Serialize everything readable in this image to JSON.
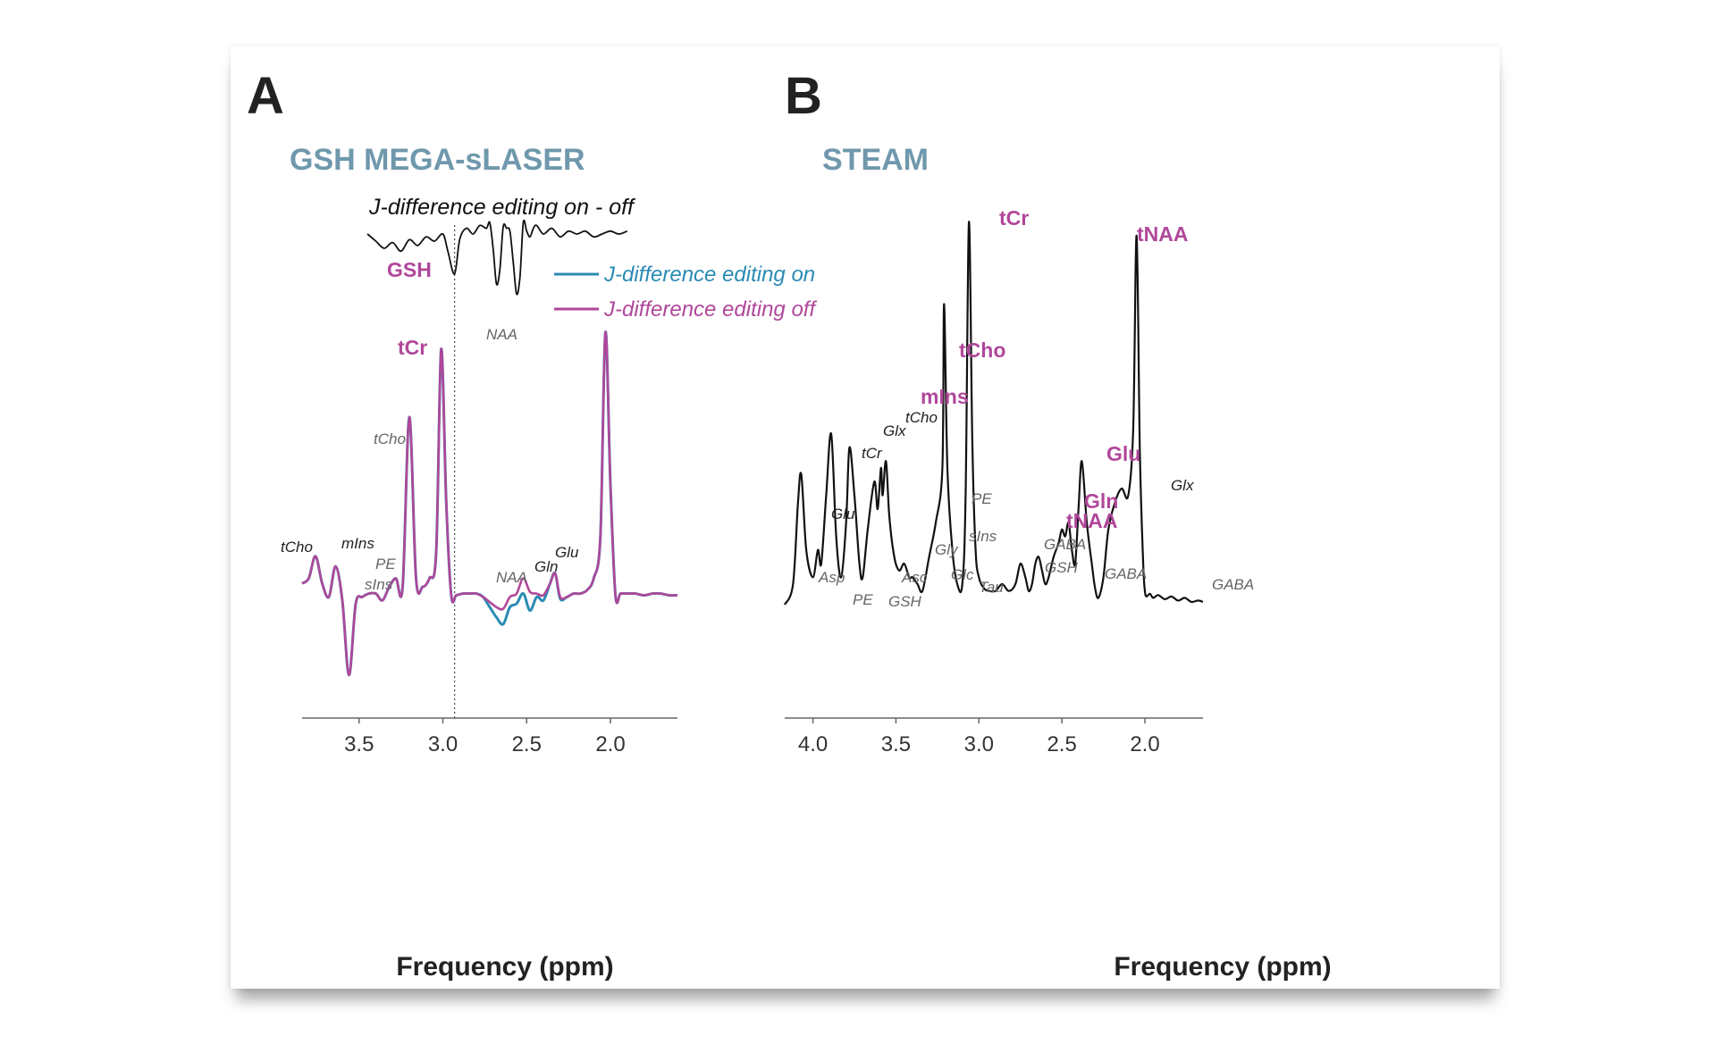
{
  "panels": {
    "a": {
      "letter": "A",
      "title": "GSH MEGA-sLASER",
      "difference_title": "J-difference editing on - off",
      "xlabel": "Frequency (ppm)",
      "legend": {
        "on": "J-difference editing on",
        "off": "J-difference editing off"
      },
      "colors": {
        "on": "#2a8bb3",
        "off": "#b0479a",
        "difference": "#111111"
      }
    },
    "b": {
      "letter": "B",
      "title": "STEAM",
      "xlabel": "Frequency (ppm)",
      "colors": {
        "spectrum": "#111111"
      }
    }
  },
  "chart_data": [
    {
      "type": "line",
      "panel": "A",
      "title": "GSH MEGA-sLASER",
      "xlabel": "Frequency (ppm)",
      "x_reversed": true,
      "xlim": [
        3.84,
        1.6
      ],
      "xticks": [
        3.5,
        3.0,
        2.5,
        2.0
      ],
      "xtick_labels": [
        "3.5",
        "3.0",
        "2.5",
        "2.0"
      ],
      "reference_line_ppm": 2.93,
      "series": [
        {
          "name": "J-difference editing on",
          "x": [
            3.84,
            3.8,
            3.76,
            3.72,
            3.68,
            3.64,
            3.6,
            3.56,
            3.52,
            3.48,
            3.44,
            3.4,
            3.36,
            3.32,
            3.28,
            3.24,
            3.2,
            3.16,
            3.12,
            3.08,
            3.04,
            3.01,
            2.98,
            2.95,
            2.92,
            2.88,
            2.84,
            2.8,
            2.76,
            2.72,
            2.68,
            2.64,
            2.6,
            2.56,
            2.52,
            2.48,
            2.44,
            2.4,
            2.36,
            2.33,
            2.3,
            2.26,
            2.22,
            2.18,
            2.14,
            2.1,
            2.06,
            2.03,
            2.0,
            1.97,
            1.94,
            1.9,
            1.85,
            1.8,
            1.75,
            1.7,
            1.65,
            1.6
          ],
          "y": [
            0.02,
            0.05,
            0.18,
            0.02,
            -0.06,
            0.12,
            -0.08,
            -0.52,
            -0.1,
            -0.06,
            -0.04,
            -0.04,
            -0.08,
            0.0,
            0.05,
            0.0,
            1.0,
            0.05,
            0.0,
            0.05,
            0.2,
            1.4,
            0.5,
            -0.05,
            -0.05,
            -0.04,
            -0.04,
            -0.04,
            -0.06,
            -0.12,
            -0.18,
            -0.22,
            -0.12,
            -0.1,
            -0.04,
            -0.14,
            -0.06,
            -0.08,
            0.02,
            0.08,
            -0.07,
            -0.06,
            -0.04,
            -0.04,
            -0.02,
            0.05,
            0.3,
            1.5,
            0.6,
            -0.05,
            -0.04,
            -0.04,
            -0.04,
            -0.05,
            -0.04,
            -0.04,
            -0.05,
            -0.05
          ]
        },
        {
          "name": "J-difference editing off",
          "x": [
            3.84,
            3.8,
            3.76,
            3.72,
            3.68,
            3.64,
            3.6,
            3.56,
            3.52,
            3.48,
            3.44,
            3.4,
            3.36,
            3.32,
            3.28,
            3.24,
            3.2,
            3.16,
            3.12,
            3.08,
            3.04,
            3.01,
            2.98,
            2.95,
            2.92,
            2.88,
            2.84,
            2.8,
            2.76,
            2.72,
            2.68,
            2.64,
            2.6,
            2.56,
            2.52,
            2.48,
            2.44,
            2.4,
            2.36,
            2.33,
            2.3,
            2.26,
            2.22,
            2.18,
            2.14,
            2.1,
            2.06,
            2.03,
            2.0,
            1.97,
            1.94,
            1.9,
            1.85,
            1.8,
            1.75,
            1.7,
            1.65,
            1.6
          ],
          "y": [
            0.02,
            0.05,
            0.18,
            0.02,
            -0.06,
            0.12,
            -0.08,
            -0.52,
            -0.1,
            -0.06,
            -0.04,
            -0.04,
            -0.08,
            0.0,
            0.05,
            0.0,
            1.0,
            0.05,
            0.0,
            0.05,
            0.2,
            1.4,
            0.5,
            -0.05,
            -0.05,
            -0.04,
            -0.04,
            -0.04,
            -0.06,
            -0.09,
            -0.12,
            -0.13,
            -0.06,
            -0.04,
            0.05,
            -0.03,
            -0.04,
            -0.05,
            0.02,
            0.08,
            -0.06,
            -0.06,
            -0.04,
            -0.04,
            -0.02,
            0.05,
            0.3,
            1.5,
            0.6,
            -0.05,
            -0.04,
            -0.04,
            -0.04,
            -0.05,
            -0.04,
            -0.04,
            -0.05,
            -0.05
          ]
        },
        {
          "name": "J-difference editing on - off",
          "x": [
            3.45,
            3.4,
            3.35,
            3.3,
            3.25,
            3.2,
            3.15,
            3.1,
            3.05,
            3.0,
            2.97,
            2.93,
            2.9,
            2.86,
            2.82,
            2.78,
            2.74,
            2.72,
            2.7,
            2.68,
            2.66,
            2.64,
            2.62,
            2.6,
            2.58,
            2.56,
            2.54,
            2.52,
            2.5,
            2.48,
            2.46,
            2.44,
            2.4,
            2.35,
            2.3,
            2.25,
            2.2,
            2.15,
            2.1,
            2.05,
            2.0,
            1.95,
            1.9
          ],
          "y": [
            0.0,
            -0.05,
            -0.1,
            -0.06,
            -0.12,
            -0.04,
            -0.08,
            -0.02,
            -0.05,
            0.0,
            -0.12,
            -0.28,
            -0.04,
            0.04,
            0.0,
            0.06,
            0.04,
            0.08,
            -0.1,
            -0.35,
            -0.25,
            0.05,
            0.04,
            0.02,
            -0.2,
            -0.42,
            -0.3,
            0.08,
            0.02,
            -0.02,
            0.04,
            0.06,
            0.0,
            0.04,
            -0.02,
            0.02,
            0.0,
            0.02,
            -0.02,
            0.0,
            0.02,
            0.0,
            0.02
          ]
        }
      ],
      "labels_major": [
        {
          "text": "tCr",
          "ppm": 3.06
        },
        {
          "text": "GSH",
          "ppm": 2.99
        }
      ],
      "labels_minor": [
        {
          "text": "tCho",
          "ppm": 3.89,
          "tone": "dark"
        },
        {
          "text": "mIns",
          "ppm": 3.6,
          "tone": "dark"
        },
        {
          "text": "PE",
          "ppm": 3.33,
          "tone": "gray"
        },
        {
          "text": "sIns",
          "ppm": 3.45,
          "tone": "gray"
        },
        {
          "text": "tCho",
          "ppm": 3.28,
          "tone": "gray"
        },
        {
          "text": "NAA",
          "ppm": 2.7,
          "tone": "gray"
        },
        {
          "text": "NAA",
          "ppm": 2.6,
          "tone": "gray"
        },
        {
          "text": "Gln",
          "ppm": 2.48,
          "tone": "dark"
        },
        {
          "text": "Glu",
          "ppm": 2.36,
          "tone": "dark"
        }
      ]
    },
    {
      "type": "line",
      "panel": "B",
      "title": "STEAM",
      "xlabel": "Frequency (ppm)",
      "x_reversed": true,
      "xlim": [
        4.17,
        1.65
      ],
      "xticks": [
        4.0,
        3.5,
        3.0,
        2.5,
        2.0
      ],
      "xtick_labels": [
        "4.0",
        "3.5",
        "3.0",
        "2.5",
        "2.0"
      ],
      "series": [
        {
          "name": "STEAM spectrum",
          "x": [
            4.17,
            4.12,
            4.09,
            4.07,
            4.04,
            4.0,
            3.97,
            3.95,
            3.92,
            3.89,
            3.86,
            3.83,
            3.8,
            3.78,
            3.75,
            3.72,
            3.7,
            3.67,
            3.63,
            3.61,
            3.59,
            3.58,
            3.56,
            3.54,
            3.51,
            3.48,
            3.45,
            3.42,
            3.4,
            3.37,
            3.34,
            3.3,
            3.26,
            3.22,
            3.21,
            3.19,
            3.16,
            3.13,
            3.1,
            3.08,
            3.06,
            3.04,
            3.02,
            3.0,
            2.97,
            2.94,
            2.9,
            2.86,
            2.82,
            2.78,
            2.75,
            2.72,
            2.7,
            2.68,
            2.66,
            2.64,
            2.62,
            2.6,
            2.58,
            2.55,
            2.52,
            2.5,
            2.48,
            2.46,
            2.44,
            2.42,
            2.4,
            2.38,
            2.35,
            2.32,
            2.3,
            2.28,
            2.25,
            2.22,
            2.18,
            2.14,
            2.1,
            2.07,
            2.05,
            2.03,
            2.01,
            2.0,
            1.99,
            1.97,
            1.95,
            1.92,
            1.88,
            1.84,
            1.8,
            1.76,
            1.72,
            1.68,
            1.65
          ],
          "y": [
            0.0,
            0.15,
            0.75,
            0.95,
            0.4,
            0.2,
            0.4,
            0.3,
            0.8,
            1.25,
            0.5,
            0.2,
            0.6,
            1.15,
            0.8,
            0.3,
            0.2,
            0.55,
            0.9,
            0.7,
            1.0,
            0.8,
            1.05,
            0.65,
            0.35,
            0.25,
            0.3,
            0.2,
            0.2,
            0.15,
            0.1,
            0.35,
            0.6,
            1.0,
            2.2,
            1.0,
            0.4,
            0.15,
            0.15,
            0.8,
            2.8,
            1.2,
            0.4,
            0.2,
            0.12,
            0.1,
            0.1,
            0.15,
            0.1,
            0.15,
            0.3,
            0.2,
            0.1,
            0.15,
            0.3,
            0.35,
            0.25,
            0.15,
            0.2,
            0.35,
            0.45,
            0.55,
            0.5,
            0.6,
            0.4,
            0.3,
            0.7,
            1.05,
            0.6,
            0.3,
            0.12,
            0.05,
            0.2,
            0.55,
            0.75,
            0.85,
            0.8,
            1.3,
            2.7,
            1.1,
            0.3,
            0.1,
            0.06,
            0.08,
            0.05,
            0.07,
            0.04,
            0.06,
            0.03,
            0.05,
            0.02,
            0.03,
            0.02
          ]
        }
      ],
      "labels_major": [
        {
          "text": "tCr",
          "ppm": 3.06
        },
        {
          "text": "tNAA",
          "ppm": 2.1
        },
        {
          "text": "tCho",
          "ppm": 3.31
        },
        {
          "text": "mIns",
          "ppm": 3.5
        },
        {
          "text": "Glu",
          "ppm": 2.42
        },
        {
          "text": "Gln",
          "ppm": 2.5
        },
        {
          "text": "tNAA",
          "ppm": 2.75
        }
      ],
      "labels_minor": [
        {
          "text": "tCho",
          "ppm": 3.7,
          "tone": "dark"
        },
        {
          "text": "Glx",
          "ppm": 3.82,
          "tone": "dark"
        },
        {
          "text": "tCr",
          "ppm": 3.95,
          "tone": "dark"
        },
        {
          "text": "Glu",
          "ppm": 4.1,
          "tone": "dark"
        },
        {
          "text": "Asp",
          "ppm": 4.13,
          "tone": "gray"
        },
        {
          "text": "PE",
          "ppm": 4.03,
          "tone": "gray"
        },
        {
          "text": "GSH",
          "ppm": 3.87,
          "tone": "gray"
        },
        {
          "text": "Asc",
          "ppm": 3.73,
          "tone": "gray"
        },
        {
          "text": "Gly",
          "ppm": 3.55,
          "tone": "gray"
        },
        {
          "text": "Glc",
          "ppm": 3.43,
          "tone": "gray"
        },
        {
          "text": "PE",
          "ppm": 3.2,
          "tone": "gray"
        },
        {
          "text": "sIns",
          "ppm": 3.34,
          "tone": "gray"
        },
        {
          "text": "Tau",
          "ppm": 3.29,
          "tone": "gray"
        },
        {
          "text": "GABA",
          "ppm": 2.97,
          "tone": "gray"
        },
        {
          "text": "GSH",
          "ppm": 2.94,
          "tone": "gray"
        },
        {
          "text": "GABA",
          "ppm": 2.48,
          "tone": "gray"
        },
        {
          "text": "Glx",
          "ppm": 2.16,
          "tone": "dark"
        },
        {
          "text": "GABA",
          "ppm": 1.82,
          "tone": "gray"
        }
      ]
    }
  ]
}
